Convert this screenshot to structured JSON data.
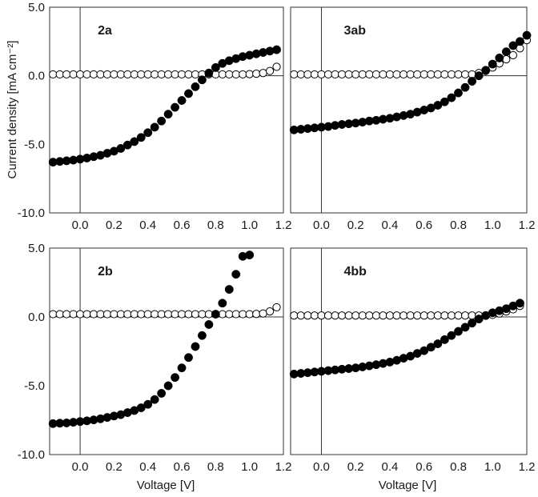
{
  "figure": {
    "ylabel": "Current density [mA cm⁻²]",
    "xlabel": "Voltage [V]"
  },
  "chart_data": [
    {
      "type": "scatter",
      "title": "2a",
      "xlim": [
        -0.18,
        1.2
      ],
      "ylim": [
        -10,
        5
      ],
      "xticks": [
        "0.0",
        "0.2",
        "0.4",
        "0.6",
        "0.8",
        "1.0",
        "1.2"
      ],
      "yticks": [
        "5.0",
        "0.0",
        "-5.0",
        "-10.0"
      ],
      "series": [
        {
          "style": "filled",
          "x": [
            -0.16,
            -0.12,
            -0.08,
            -0.04,
            0.0,
            0.04,
            0.08,
            0.12,
            0.16,
            0.2,
            0.24,
            0.28,
            0.32,
            0.36,
            0.4,
            0.44,
            0.48,
            0.52,
            0.56,
            0.6,
            0.64,
            0.68,
            0.72,
            0.76,
            0.8,
            0.84,
            0.88,
            0.92,
            0.96,
            1.0,
            1.04,
            1.08,
            1.12,
            1.16
          ],
          "y": [
            -6.3,
            -6.25,
            -6.2,
            -6.15,
            -6.08,
            -6.0,
            -5.9,
            -5.8,
            -5.65,
            -5.5,
            -5.3,
            -5.05,
            -4.8,
            -4.5,
            -4.15,
            -3.75,
            -3.3,
            -2.8,
            -2.3,
            -1.8,
            -1.3,
            -0.8,
            -0.3,
            0.2,
            0.6,
            0.9,
            1.1,
            1.25,
            1.4,
            1.5,
            1.6,
            1.7,
            1.8,
            1.9
          ]
        },
        {
          "style": "open",
          "x": [
            -0.16,
            -0.12,
            -0.08,
            -0.04,
            0.0,
            0.04,
            0.08,
            0.12,
            0.16,
            0.2,
            0.24,
            0.28,
            0.32,
            0.36,
            0.4,
            0.44,
            0.48,
            0.52,
            0.56,
            0.6,
            0.64,
            0.68,
            0.72,
            0.76,
            0.8,
            0.84,
            0.88,
            0.92,
            0.96,
            1.0,
            1.04,
            1.08,
            1.12,
            1.16
          ],
          "y": [
            0.1,
            0.1,
            0.1,
            0.1,
            0.1,
            0.1,
            0.1,
            0.1,
            0.1,
            0.1,
            0.1,
            0.1,
            0.1,
            0.1,
            0.1,
            0.1,
            0.1,
            0.1,
            0.1,
            0.1,
            0.1,
            0.1,
            0.1,
            0.1,
            0.1,
            0.1,
            0.1,
            0.1,
            0.1,
            0.12,
            0.15,
            0.2,
            0.35,
            0.65
          ]
        }
      ]
    },
    {
      "type": "scatter",
      "title": "3ab",
      "xlim": [
        -0.18,
        1.2
      ],
      "ylim": [
        -10,
        5
      ],
      "xticks": [
        "0.0",
        "0.2",
        "0.4",
        "0.6",
        "0.8",
        "1.0",
        "1.2"
      ],
      "yticks": [
        "5.0",
        "0.0",
        "-5.0",
        "-10.0"
      ],
      "series": [
        {
          "style": "filled",
          "x": [
            -0.16,
            -0.12,
            -0.08,
            -0.04,
            0.0,
            0.04,
            0.08,
            0.12,
            0.16,
            0.2,
            0.24,
            0.28,
            0.32,
            0.36,
            0.4,
            0.44,
            0.48,
            0.52,
            0.56,
            0.6,
            0.64,
            0.68,
            0.72,
            0.76,
            0.8,
            0.84,
            0.88,
            0.92,
            0.96,
            1.0,
            1.04,
            1.08,
            1.12,
            1.16,
            1.2
          ],
          "y": [
            -3.95,
            -3.9,
            -3.85,
            -3.8,
            -3.75,
            -3.7,
            -3.62,
            -3.55,
            -3.5,
            -3.45,
            -3.38,
            -3.3,
            -3.25,
            -3.17,
            -3.1,
            -3.0,
            -2.9,
            -2.8,
            -2.65,
            -2.5,
            -2.35,
            -2.15,
            -1.9,
            -1.6,
            -1.25,
            -0.85,
            -0.4,
            0.0,
            0.4,
            0.85,
            1.3,
            1.75,
            2.2,
            2.5,
            2.95
          ]
        },
        {
          "style": "open",
          "x": [
            -0.16,
            -0.12,
            -0.08,
            -0.04,
            0.0,
            0.04,
            0.08,
            0.12,
            0.16,
            0.2,
            0.24,
            0.28,
            0.32,
            0.36,
            0.4,
            0.44,
            0.48,
            0.52,
            0.56,
            0.6,
            0.64,
            0.68,
            0.72,
            0.76,
            0.8,
            0.84,
            0.88,
            0.92,
            0.96,
            1.0,
            1.04,
            1.08,
            1.12,
            1.16,
            1.2
          ],
          "y": [
            0.1,
            0.1,
            0.1,
            0.1,
            0.1,
            0.1,
            0.1,
            0.1,
            0.1,
            0.1,
            0.1,
            0.1,
            0.1,
            0.1,
            0.1,
            0.1,
            0.1,
            0.1,
            0.1,
            0.1,
            0.1,
            0.1,
            0.1,
            0.1,
            0.1,
            0.1,
            0.1,
            0.2,
            0.35,
            0.6,
            0.9,
            1.2,
            1.5,
            2.0,
            2.6
          ]
        }
      ]
    },
    {
      "type": "scatter",
      "title": "2b",
      "xlim": [
        -0.18,
        1.2
      ],
      "ylim": [
        -10,
        5
      ],
      "xticks": [
        "0.0",
        "0.2",
        "0.4",
        "0.6",
        "0.8",
        "1.0",
        "1.2"
      ],
      "yticks": [
        "5.0",
        "0.0",
        "-5.0",
        "-10.0"
      ],
      "series": [
        {
          "style": "filled",
          "x": [
            -0.16,
            -0.12,
            -0.08,
            -0.04,
            0.0,
            0.04,
            0.08,
            0.12,
            0.16,
            0.2,
            0.24,
            0.28,
            0.32,
            0.36,
            0.4,
            0.44,
            0.48,
            0.52,
            0.56,
            0.6,
            0.64,
            0.68,
            0.72,
            0.76,
            0.8,
            0.84,
            0.88,
            0.92,
            0.96,
            1.0
          ],
          "y": [
            -7.75,
            -7.72,
            -7.7,
            -7.65,
            -7.6,
            -7.55,
            -7.48,
            -7.4,
            -7.3,
            -7.2,
            -7.1,
            -6.95,
            -6.8,
            -6.6,
            -6.35,
            -6.0,
            -5.55,
            -5.0,
            -4.4,
            -3.7,
            -2.95,
            -2.15,
            -1.35,
            -0.55,
            0.2,
            1.0,
            2.0,
            3.1,
            4.4,
            4.5
          ]
        },
        {
          "style": "open",
          "x": [
            -0.16,
            -0.12,
            -0.08,
            -0.04,
            0.0,
            0.04,
            0.08,
            0.12,
            0.16,
            0.2,
            0.24,
            0.28,
            0.32,
            0.36,
            0.4,
            0.44,
            0.48,
            0.52,
            0.56,
            0.6,
            0.64,
            0.68,
            0.72,
            0.76,
            0.8,
            0.84,
            0.88,
            0.92,
            0.96,
            1.0,
            1.04,
            1.08,
            1.12,
            1.16
          ],
          "y": [
            0.2,
            0.2,
            0.2,
            0.2,
            0.2,
            0.2,
            0.2,
            0.2,
            0.2,
            0.2,
            0.2,
            0.2,
            0.2,
            0.2,
            0.2,
            0.2,
            0.2,
            0.2,
            0.2,
            0.2,
            0.2,
            0.2,
            0.2,
            0.2,
            0.2,
            0.2,
            0.2,
            0.2,
            0.2,
            0.2,
            0.22,
            0.25,
            0.4,
            0.7
          ]
        }
      ]
    },
    {
      "type": "scatter",
      "title": "4bb",
      "xlim": [
        -0.18,
        1.2
      ],
      "ylim": [
        -10,
        5
      ],
      "xticks": [
        "0.0",
        "0.2",
        "0.4",
        "0.6",
        "0.8",
        "1.0",
        "1.2"
      ],
      "yticks": [
        "5.0",
        "0.0",
        "-5.0",
        "-10.0"
      ],
      "series": [
        {
          "style": "filled",
          "x": [
            -0.16,
            -0.12,
            -0.08,
            -0.04,
            0.0,
            0.04,
            0.08,
            0.12,
            0.16,
            0.2,
            0.24,
            0.28,
            0.32,
            0.36,
            0.4,
            0.44,
            0.48,
            0.52,
            0.56,
            0.6,
            0.64,
            0.68,
            0.72,
            0.76,
            0.8,
            0.84,
            0.88,
            0.92,
            0.96,
            1.0,
            1.04,
            1.08,
            1.12,
            1.16
          ],
          "y": [
            -4.15,
            -4.1,
            -4.05,
            -4.0,
            -3.95,
            -3.9,
            -3.85,
            -3.8,
            -3.75,
            -3.7,
            -3.63,
            -3.55,
            -3.47,
            -3.38,
            -3.28,
            -3.15,
            -3.0,
            -2.85,
            -2.65,
            -2.45,
            -2.2,
            -1.95,
            -1.65,
            -1.35,
            -1.05,
            -0.75,
            -0.45,
            -0.15,
            0.1,
            0.3,
            0.45,
            0.6,
            0.8,
            1.0
          ]
        },
        {
          "style": "open",
          "x": [
            -0.16,
            -0.12,
            -0.08,
            -0.04,
            0.0,
            0.04,
            0.08,
            0.12,
            0.16,
            0.2,
            0.24,
            0.28,
            0.32,
            0.36,
            0.4,
            0.44,
            0.48,
            0.52,
            0.56,
            0.6,
            0.64,
            0.68,
            0.72,
            0.76,
            0.8,
            0.84,
            0.88,
            0.92,
            0.96,
            1.0,
            1.04,
            1.08,
            1.12,
            1.16
          ],
          "y": [
            0.1,
            0.1,
            0.1,
            0.1,
            0.1,
            0.1,
            0.1,
            0.1,
            0.1,
            0.1,
            0.1,
            0.1,
            0.1,
            0.1,
            0.1,
            0.1,
            0.1,
            0.1,
            0.1,
            0.1,
            0.1,
            0.1,
            0.1,
            0.1,
            0.1,
            0.1,
            0.1,
            0.1,
            0.12,
            0.15,
            0.25,
            0.4,
            0.55,
            0.8
          ]
        }
      ]
    }
  ]
}
